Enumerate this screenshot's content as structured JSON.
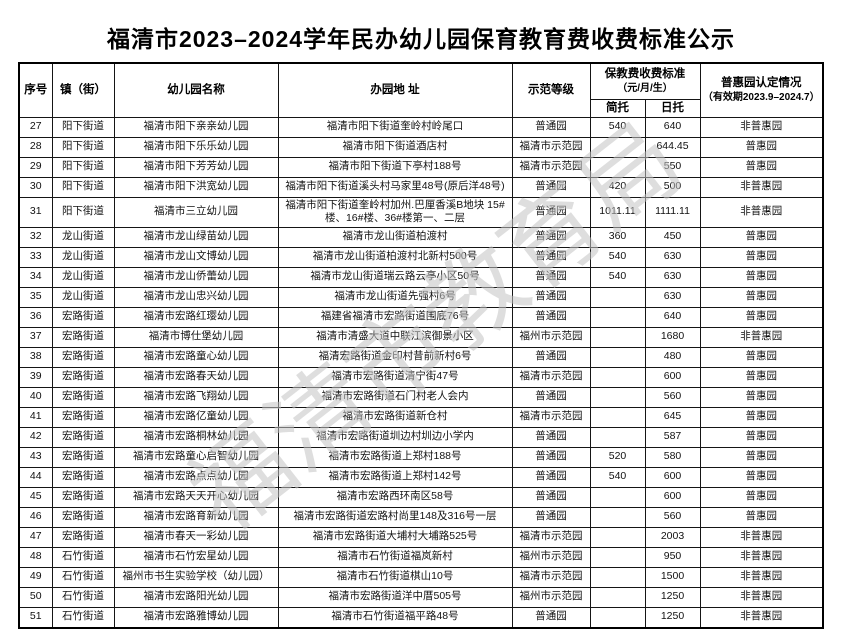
{
  "title": "福清市2023–2024学年民办幼儿园保育教育费收费标准公示",
  "watermark": "福清市教育局",
  "table": {
    "headers": {
      "seq": "序号",
      "town": "镇（街）",
      "name": "幼儿园名称",
      "address": "办园地 址",
      "level": "示范等级",
      "fee_group_line1": "保教费收费标准",
      "fee_group_line2": "（元/月/生）",
      "fee_day_short": "简托",
      "fee_day_full": "日托",
      "inclusive_line1": "普惠园认定情况",
      "inclusive_line2": "（有效期2023.9–2024.7）"
    },
    "rows": [
      {
        "seq": "27",
        "town": "阳下街道",
        "name": "福清市阳下亲亲幼儿园",
        "address": "福清市阳下街道奎岭村岭尾口",
        "level": "普通园",
        "jiantuo": "540",
        "rituo": "640",
        "inclusive": "非普惠园"
      },
      {
        "seq": "28",
        "town": "阳下街道",
        "name": "福清市阳下乐乐幼儿园",
        "address": "福清市阳下街道酒店村",
        "level": "福清市示范园",
        "jiantuo": "",
        "rituo": "644.45",
        "inclusive": "普惠园"
      },
      {
        "seq": "29",
        "town": "阳下街道",
        "name": "福清市阳下芳芳幼儿园",
        "address": "福清市阳下街道下亭村188号",
        "level": "福清市示范园",
        "jiantuo": "",
        "rituo": "550",
        "inclusive": "普惠园"
      },
      {
        "seq": "30",
        "town": "阳下街道",
        "name": "福清市阳下洪宽幼儿园",
        "address": "福清市阳下街道溪头村马家里48号(原后洋48号)",
        "level": "普通园",
        "jiantuo": "420",
        "rituo": "500",
        "inclusive": "非普惠园"
      },
      {
        "seq": "31",
        "town": "阳下街道",
        "name": "福清市三立幼儿园",
        "address": "福清市阳下街道奎岭村加州.巴厘香溪B地块 15#楼、16#楼、36#楼第一、二层",
        "level": "普通园",
        "jiantuo": "1011.11",
        "rituo": "1111.11",
        "inclusive": "非普惠园"
      },
      {
        "seq": "32",
        "town": "龙山街道",
        "name": "福清市龙山绿苗幼儿园",
        "address": "福清市龙山街道柏渡村",
        "level": "普通园",
        "jiantuo": "360",
        "rituo": "450",
        "inclusive": "普惠园"
      },
      {
        "seq": "33",
        "town": "龙山街道",
        "name": "福清市龙山文博幼儿园",
        "address": "福清市龙山街道柏渡村北新村500号",
        "level": "普通园",
        "jiantuo": "540",
        "rituo": "630",
        "inclusive": "普惠园"
      },
      {
        "seq": "34",
        "town": "龙山街道",
        "name": "福清市龙山侨蕾幼儿园",
        "address": "福清市龙山街道瑞云路云亭小区50号",
        "level": "普通园",
        "jiantuo": "540",
        "rituo": "630",
        "inclusive": "普惠园"
      },
      {
        "seq": "35",
        "town": "龙山街道",
        "name": "福清市龙山忠兴幼儿园",
        "address": "福清市龙山街道先强村6号",
        "level": "普通园",
        "jiantuo": "",
        "rituo": "630",
        "inclusive": "普惠园"
      },
      {
        "seq": "36",
        "town": "宏路街道",
        "name": "福清市宏路红璎幼儿园",
        "address": "福建省福清市宏路街道围底76号",
        "level": "普通园",
        "jiantuo": "",
        "rituo": "640",
        "inclusive": "普惠园"
      },
      {
        "seq": "37",
        "town": "宏路街道",
        "name": "福清市博仕堡幼儿园",
        "address": "福清市清盛大道中联江滨御景小区",
        "level": "福州市示范园",
        "jiantuo": "",
        "rituo": "1680",
        "inclusive": "非普惠园"
      },
      {
        "seq": "38",
        "town": "宏路街道",
        "name": "福清市宏路童心幼儿园",
        "address": "福清宏路街道金印村昔前新村6号",
        "level": "普通园",
        "jiantuo": "",
        "rituo": "480",
        "inclusive": "普惠园"
      },
      {
        "seq": "39",
        "town": "宏路街道",
        "name": "福清市宏路春天幼儿园",
        "address": "福清市宏路街道清宁街47号",
        "level": "福清市示范园",
        "jiantuo": "",
        "rituo": "600",
        "inclusive": "普惠园"
      },
      {
        "seq": "40",
        "town": "宏路街道",
        "name": "福清市宏路飞翔幼儿园",
        "address": "福清市宏路街道石门村老人会内",
        "level": "普通园",
        "jiantuo": "",
        "rituo": "560",
        "inclusive": "普惠园"
      },
      {
        "seq": "41",
        "town": "宏路街道",
        "name": "福清市宏路亿童幼儿园",
        "address": "福清市宏路街道新仓村",
        "level": "福清市示范园",
        "jiantuo": "",
        "rituo": "645",
        "inclusive": "普惠园"
      },
      {
        "seq": "42",
        "town": "宏路街道",
        "name": "福清市宏路桐林幼儿园",
        "address": "福清市宏路街道圳边村圳边小学内",
        "level": "普通园",
        "jiantuo": "",
        "rituo": "587",
        "inclusive": "普惠园"
      },
      {
        "seq": "43",
        "town": "宏路街道",
        "name": "福清市宏路童心启智幼儿园",
        "address": "福清市宏路街道上郑村188号",
        "level": "普通园",
        "jiantuo": "520",
        "rituo": "580",
        "inclusive": "普惠园"
      },
      {
        "seq": "44",
        "town": "宏路街道",
        "name": "福清市宏路点点幼儿园",
        "address": "福清市宏路街道上郑村142号",
        "level": "普通园",
        "jiantuo": "540",
        "rituo": "600",
        "inclusive": "普惠园"
      },
      {
        "seq": "45",
        "town": "宏路街道",
        "name": "福清市宏路天天开心幼儿园",
        "address": "福清市宏路西环南区58号",
        "level": "普通园",
        "jiantuo": "",
        "rituo": "600",
        "inclusive": "普惠园"
      },
      {
        "seq": "46",
        "town": "宏路街道",
        "name": "福清市宏路育新幼儿园",
        "address": "福清市宏路街道宏路村尚里148及316号一层",
        "level": "普通园",
        "jiantuo": "",
        "rituo": "560",
        "inclusive": "普惠园"
      },
      {
        "seq": "47",
        "town": "宏路街道",
        "name": "福清市春天一彩幼儿园",
        "address": "福清市宏路街道大埔村大埔路525号",
        "level": "福清市示范园",
        "jiantuo": "",
        "rituo": "2003",
        "inclusive": "非普惠园"
      },
      {
        "seq": "48",
        "town": "石竹街道",
        "name": "福清市石竹宏星幼儿园",
        "address": "福清市石竹街道福岚新村",
        "level": "福州市示范园",
        "jiantuo": "",
        "rituo": "950",
        "inclusive": "非普惠园"
      },
      {
        "seq": "49",
        "town": "石竹街道",
        "name": "福州市书生实验学校（幼儿园）",
        "address": "福清市石竹街道棋山10号",
        "level": "福清市示范园",
        "jiantuo": "",
        "rituo": "1500",
        "inclusive": "非普惠园"
      },
      {
        "seq": "50",
        "town": "石竹街道",
        "name": "福清市宏路阳光幼儿园",
        "address": "福清市宏路街道洋中厝505号",
        "level": "福州市示范园",
        "jiantuo": "",
        "rituo": "1250",
        "inclusive": "非普惠园"
      },
      {
        "seq": "51",
        "town": "石竹街道",
        "name": "福清市宏路雅博幼儿园",
        "address": "福清市石竹街道福平路48号",
        "level": "普通园",
        "jiantuo": "",
        "rituo": "1250",
        "inclusive": "非普惠园"
      }
    ]
  }
}
